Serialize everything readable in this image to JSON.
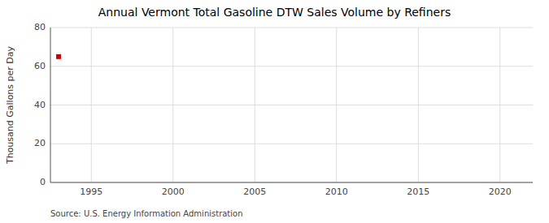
{
  "chart_data": {
    "type": "scatter",
    "title": "Annual Vermont Total Gasoline DTW Sales Volume by Refiners",
    "y_label": "Thousand Gallons per Day",
    "source": "Source: U.S. Energy Information Administration",
    "x": [
      1993
    ],
    "values": [
      65.0
    ],
    "color": "#cc0000",
    "marker": "square",
    "xlim": [
      1992.5,
      2022
    ],
    "ylim": [
      0,
      80
    ],
    "xticks": [
      1995,
      2000,
      2005,
      2010,
      2015,
      2020
    ],
    "yticks": [
      0,
      20,
      40,
      60,
      80
    ],
    "grid": true
  }
}
